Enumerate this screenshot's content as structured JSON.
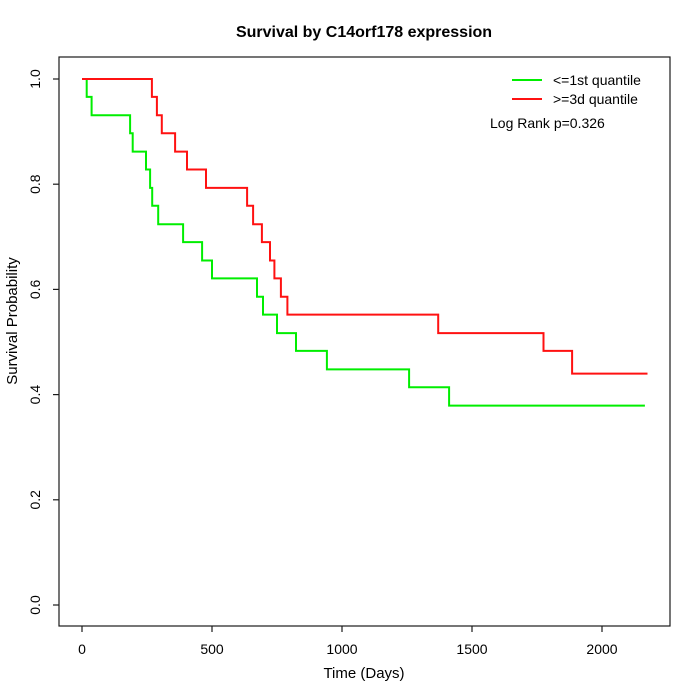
{
  "chart_data": {
    "type": "line",
    "subtype": "kaplan-meier-step",
    "title": "Survival by C14orf178 expression",
    "xlabel": "Time (Days)",
    "ylabel": "Survival Probability",
    "annotation": "Log Rank p=0.326",
    "x_ticks": [
      0,
      500,
      1000,
      1500,
      2000
    ],
    "y_ticks": [
      0.0,
      0.2,
      0.4,
      0.6,
      0.8,
      1.0
    ],
    "xlim": [
      0,
      2265
    ],
    "ylim": [
      0,
      1
    ],
    "grid": false,
    "legend_position": "top-right",
    "frame_color": "#1a1a1a",
    "series": [
      {
        "name": "<=1st quantile",
        "color": "#00ee00",
        "step": true,
        "points": [
          [
            0,
            1.0
          ],
          [
            18,
            0.966
          ],
          [
            37,
            0.931
          ],
          [
            185,
            0.897
          ],
          [
            195,
            0.862
          ],
          [
            246,
            0.828
          ],
          [
            262,
            0.793
          ],
          [
            270,
            0.759
          ],
          [
            293,
            0.724
          ],
          [
            389,
            0.69
          ],
          [
            462,
            0.655
          ],
          [
            500,
            0.621
          ],
          [
            673,
            0.586
          ],
          [
            696,
            0.552
          ],
          [
            750,
            0.517
          ],
          [
            823,
            0.483
          ],
          [
            942,
            0.448
          ],
          [
            1258,
            0.414
          ],
          [
            1412,
            0.379
          ],
          [
            2165,
            0.379
          ]
        ]
      },
      {
        "name": ">=3d quantile",
        "color": "#ff1111",
        "step": true,
        "points": [
          [
            0,
            1.0
          ],
          [
            269,
            0.966
          ],
          [
            288,
            0.931
          ],
          [
            307,
            0.897
          ],
          [
            358,
            0.862
          ],
          [
            404,
            0.828
          ],
          [
            477,
            0.793
          ],
          [
            635,
            0.759
          ],
          [
            658,
            0.724
          ],
          [
            692,
            0.69
          ],
          [
            723,
            0.655
          ],
          [
            740,
            0.621
          ],
          [
            765,
            0.586
          ],
          [
            790,
            0.552
          ],
          [
            1370,
            0.517
          ],
          [
            1775,
            0.483
          ],
          [
            1885,
            0.44
          ],
          [
            2175,
            0.44
          ]
        ]
      }
    ]
  }
}
